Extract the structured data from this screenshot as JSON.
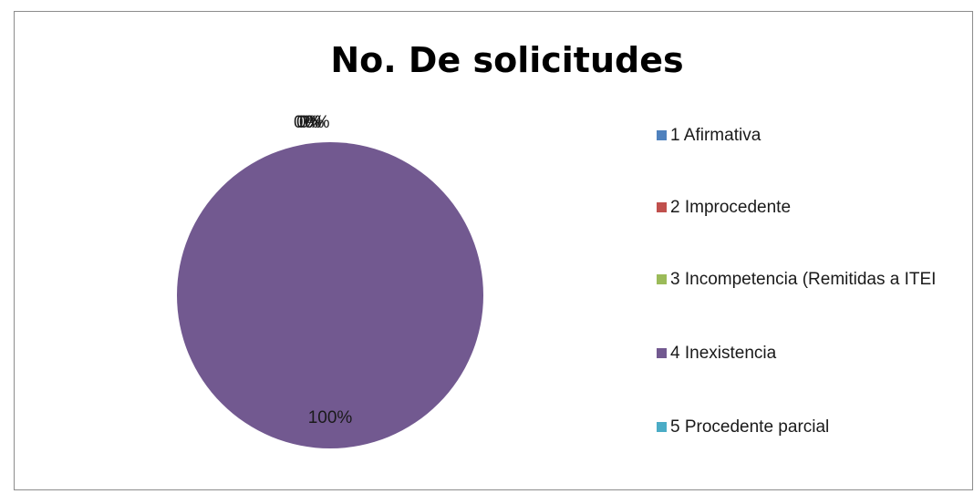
{
  "chart_data": {
    "type": "pie",
    "title": "No. De solicitudes",
    "categories": [
      "1 Afirmativa",
      "2 Improcedente",
      "3 Incompetencia (Remitidas a ITEI",
      "4 Inexistencia",
      "5 Procedente parcial"
    ],
    "values": [
      0,
      0,
      0,
      100,
      0
    ],
    "data_labels": [
      "0%",
      "0%",
      "0%",
      "100%",
      "0%"
    ],
    "colors": [
      "#4f81bd",
      "#c0504d",
      "#9bbb59",
      "#725990",
      "#4bacc6"
    ],
    "legend_position": "right"
  }
}
